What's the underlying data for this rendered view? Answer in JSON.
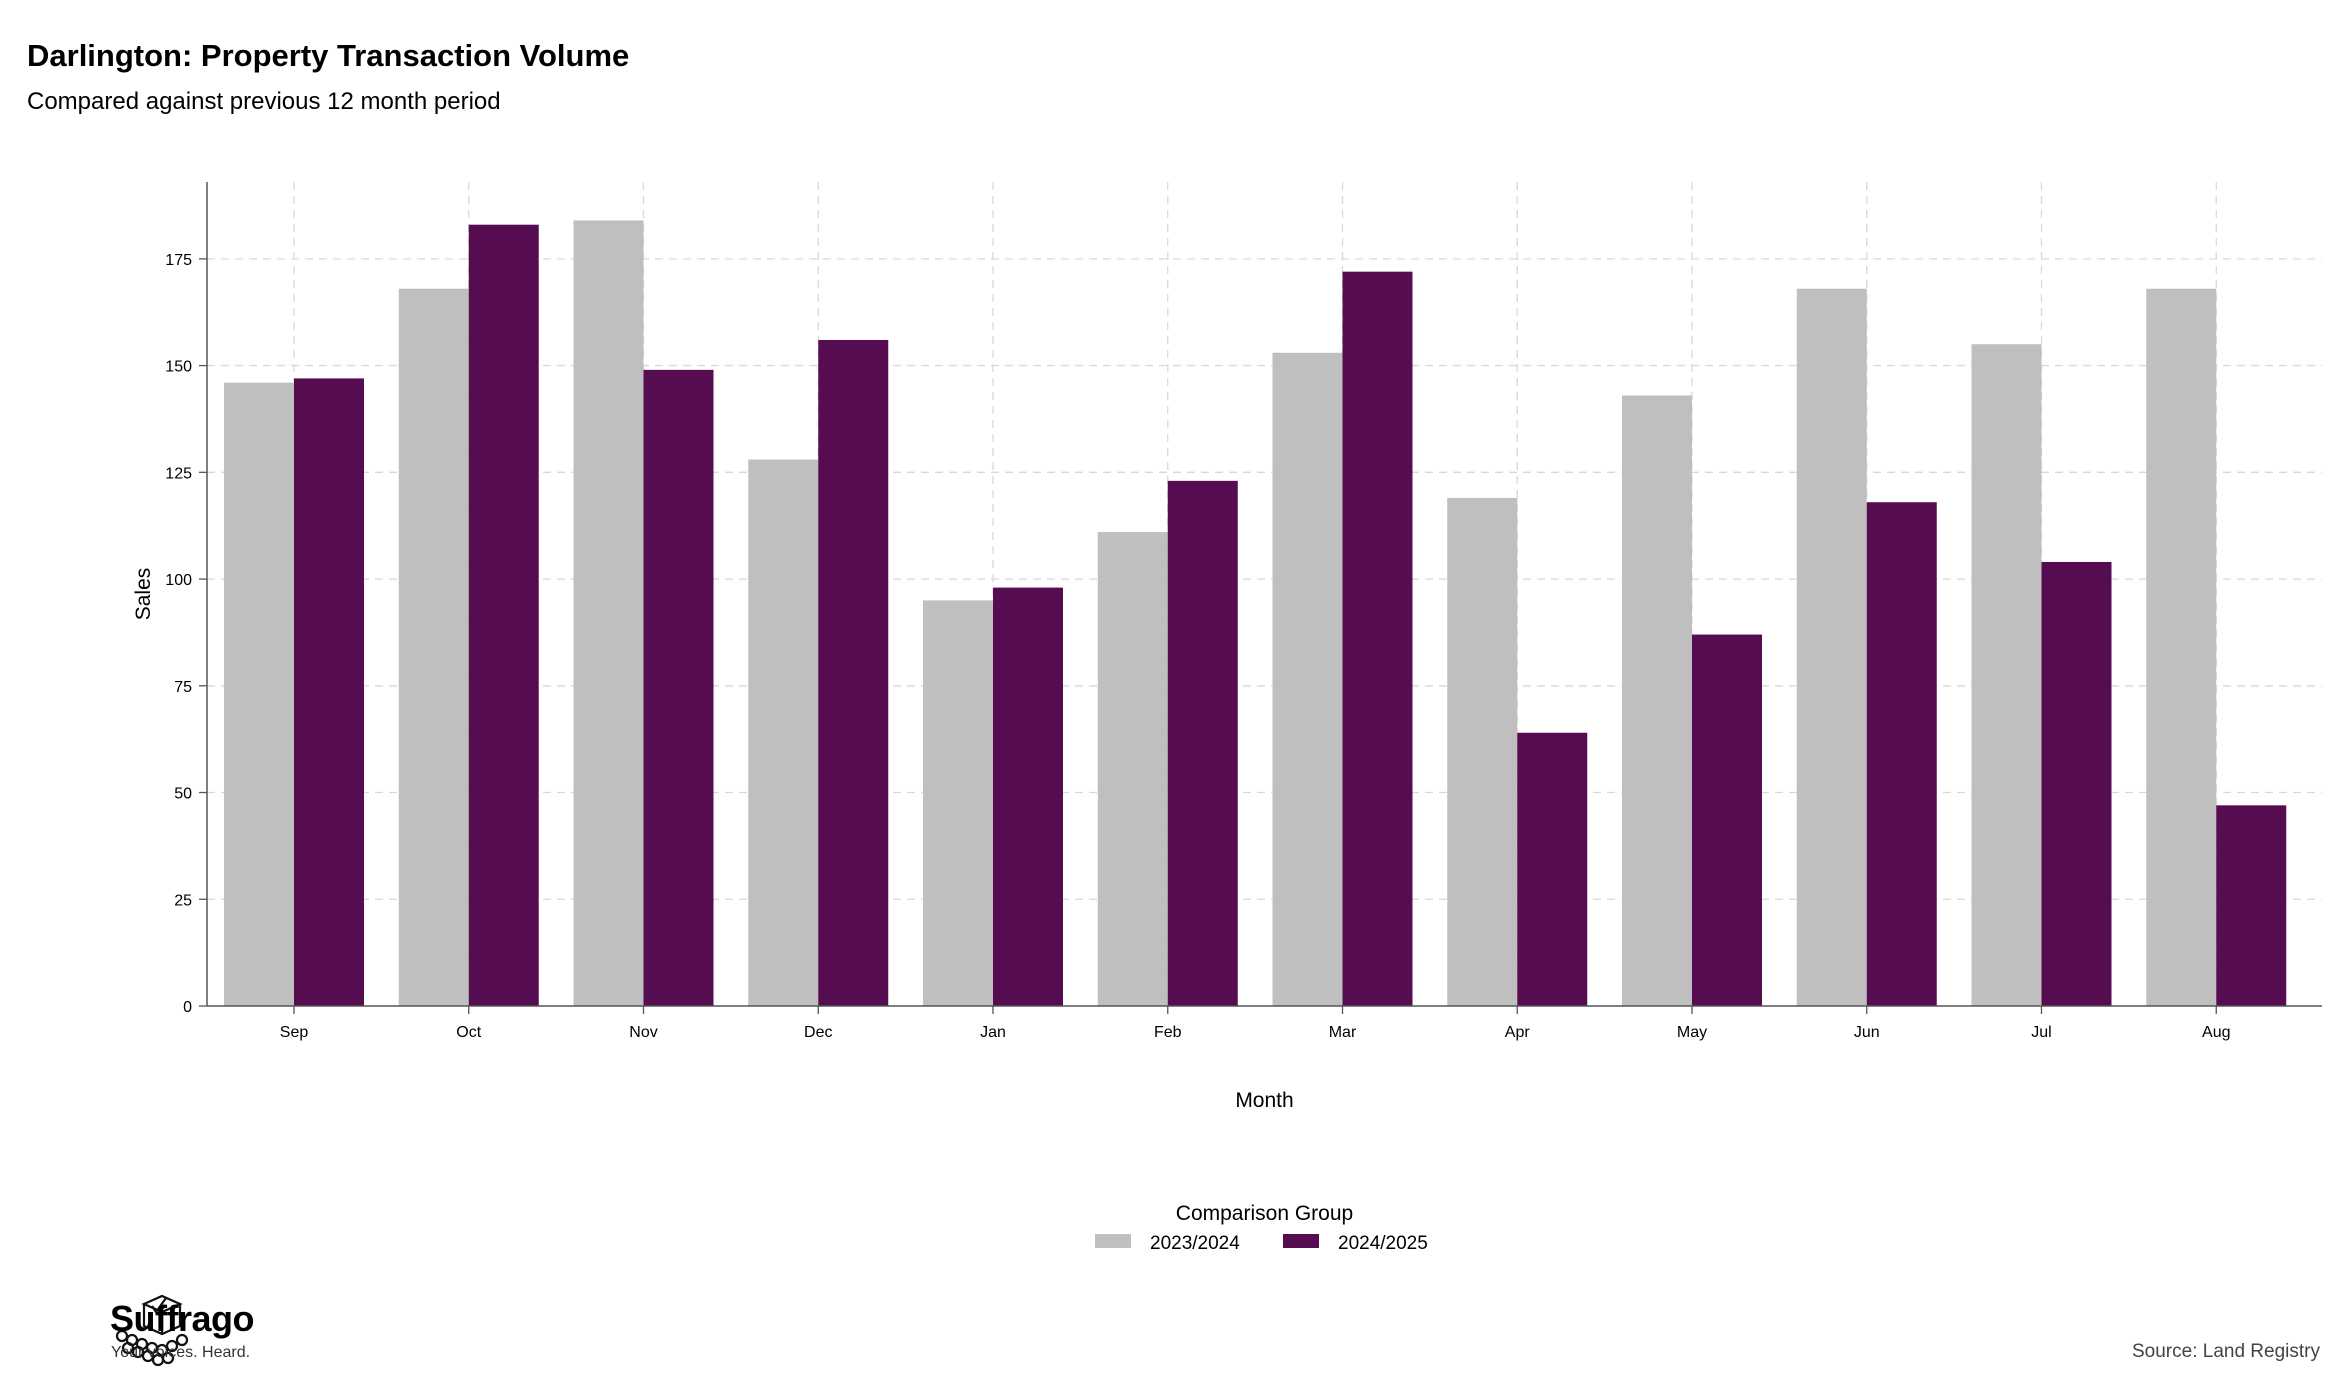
{
  "chart_data": {
    "type": "bar",
    "title": "Darlington: Property Transaction Volume",
    "subtitle": "Compared against previous 12 month period",
    "xlabel": "Month",
    "ylabel": "Sales",
    "categories": [
      "Sep",
      "Oct",
      "Nov",
      "Dec",
      "Jan",
      "Feb",
      "Mar",
      "Apr",
      "May",
      "Jun",
      "Jul",
      "Aug"
    ],
    "series": [
      {
        "name": "2023/2024",
        "color": "#bfbfbf",
        "values": [
          146,
          168,
          184,
          128,
          95,
          111,
          153,
          119,
          143,
          168,
          155,
          168
        ]
      },
      {
        "name": "2024/2025",
        "color": "#560c50",
        "values": [
          147,
          183,
          149,
          156,
          98,
          123,
          172,
          64,
          87,
          118,
          104,
          47
        ]
      }
    ],
    "ylim": [
      0,
      193
    ],
    "yticks": [
      0,
      25,
      50,
      75,
      100,
      125,
      150,
      175
    ],
    "grid": true,
    "legend": {
      "title": "Comparison Group",
      "position": "bottom"
    }
  },
  "branding": {
    "name": "Suffrago",
    "tagline": "Your voices. Heard."
  },
  "source": "Source: Land Registry"
}
